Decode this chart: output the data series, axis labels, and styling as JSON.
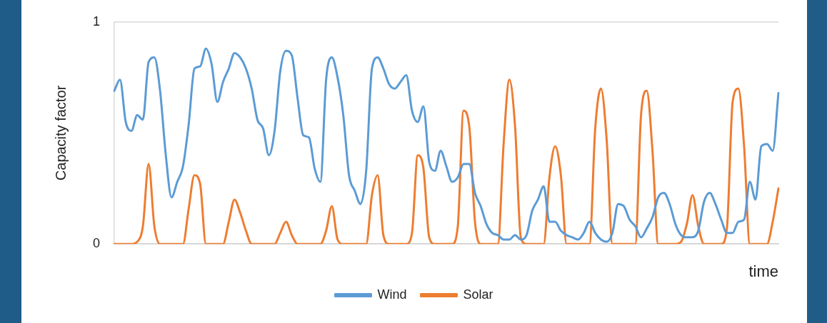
{
  "chart_data": {
    "type": "line",
    "xlabel": "time",
    "ylabel": "Capacity factor",
    "categories": [
      null,
      null,
      null,
      null,
      null,
      null,
      null,
      null,
      null,
      null,
      null,
      null,
      null,
      null,
      null,
      null,
      null,
      null,
      null,
      null,
      null,
      null,
      null,
      null,
      null,
      null,
      null,
      null,
      null,
      null,
      null,
      null,
      null,
      null,
      null,
      null,
      null,
      null,
      null,
      null,
      null,
      null,
      null,
      null,
      null,
      null,
      null,
      null,
      null,
      null,
      null,
      null,
      null,
      null,
      null,
      null,
      null,
      null,
      null,
      null,
      null,
      null,
      null,
      null,
      null,
      null,
      null,
      null,
      null,
      null,
      null,
      null,
      null,
      null,
      null,
      null,
      null,
      null,
      null,
      null,
      null,
      null,
      null,
      null,
      null,
      null,
      null,
      null,
      null,
      null,
      null,
      null,
      null,
      null,
      null,
      null,
      null,
      null,
      null,
      null,
      null,
      null,
      null,
      null,
      null,
      null,
      null,
      null,
      null,
      null,
      null,
      null,
      null,
      null,
      null,
      null,
      null
    ],
    "series": [
      {
        "name": "Wind",
        "color": "#5b9bd5",
        "values": [
          0.69,
          0.74,
          0.55,
          0.51,
          0.58,
          0.56,
          0.82,
          0.84,
          0.69,
          0.4,
          0.21,
          0.28,
          0.35,
          0.54,
          0.79,
          0.8,
          0.88,
          0.81,
          0.64,
          0.73,
          0.79,
          0.86,
          0.84,
          0.79,
          0.7,
          0.56,
          0.52,
          0.4,
          0.51,
          0.78,
          0.87,
          0.85,
          0.66,
          0.49,
          0.48,
          0.34,
          0.28,
          0.74,
          0.84,
          0.75,
          0.58,
          0.31,
          0.24,
          0.18,
          0.33,
          0.79,
          0.84,
          0.79,
          0.72,
          0.7,
          0.73,
          0.76,
          0.6,
          0.55,
          0.62,
          0.37,
          0.33,
          0.42,
          0.35,
          0.28,
          0.3,
          0.36,
          0.36,
          0.23,
          0.17,
          0.09,
          0.05,
          0.04,
          0.02,
          0.02,
          0.04,
          0.02,
          0.04,
          0.15,
          0.2,
          0.26,
          0.1,
          0.1,
          0.06,
          0.04,
          0.03,
          0.02,
          0.05,
          0.1,
          0.05,
          0.02,
          0.01,
          0.05,
          0.18,
          0.17,
          0.11,
          0.08,
          0.03,
          0.07,
          0.12,
          0.21,
          0.23,
          0.18,
          0.09,
          0.04,
          0.03,
          0.03,
          0.06,
          0.19,
          0.23,
          0.18,
          0.11,
          0.05,
          0.05,
          0.1,
          0.11,
          0.28,
          0.2,
          0.44,
          0.45,
          0.42,
          0.68
        ]
      },
      {
        "name": "Solar",
        "color": "#ed7d31",
        "values": [
          0,
          0,
          0,
          0,
          0.01,
          0.08,
          0.36,
          0.08,
          0,
          0,
          0,
          0,
          0,
          0.16,
          0.31,
          0.27,
          0,
          0,
          0,
          0,
          0.1,
          0.2,
          0.14,
          0.06,
          0,
          0,
          0,
          0,
          0,
          0.05,
          0.1,
          0.04,
          0,
          0,
          0,
          0,
          0,
          0.06,
          0.17,
          0.02,
          0,
          0,
          0,
          0,
          0,
          0.22,
          0.31,
          0.04,
          0,
          0,
          0,
          0,
          0.05,
          0.4,
          0.34,
          0.03,
          0,
          0,
          0,
          0,
          0.08,
          0.6,
          0.53,
          0.1,
          0,
          0,
          0,
          0,
          0.45,
          0.74,
          0.53,
          0.03,
          0,
          0,
          0,
          0,
          0.3,
          0.44,
          0.31,
          0,
          0,
          0,
          0,
          0,
          0.52,
          0.7,
          0.47,
          0,
          0,
          0,
          0,
          0,
          0.58,
          0.69,
          0.42,
          0,
          0,
          0,
          0,
          0.01,
          0.09,
          0.22,
          0.08,
          0,
          0,
          0,
          0,
          0.07,
          0.64,
          0.7,
          0.44,
          0,
          0,
          0,
          0,
          0.1,
          0.25
        ]
      }
    ],
    "ylim": [
      0,
      1
    ],
    "yticks": [
      0,
      1
    ],
    "grid": "y",
    "legend": "bottom"
  }
}
